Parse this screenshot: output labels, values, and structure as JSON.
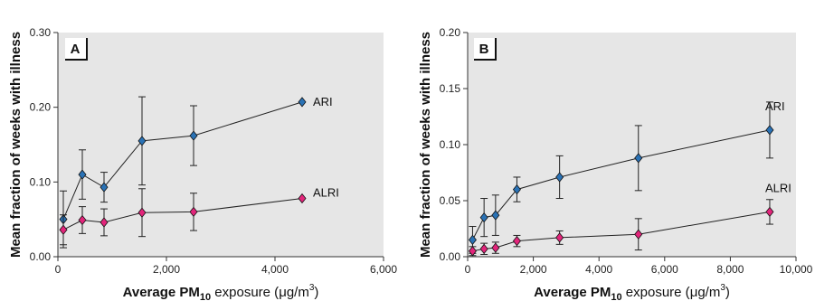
{
  "chart_data": [
    {
      "type": "line",
      "panel": "A",
      "ylabel": "Mean fraction of weeks with illness",
      "xlabel_main": "Average PM",
      "xlabel_sub": "10",
      "xlabel_tail": " exposure (",
      "xlabel_mu": "μ",
      "xlabel_unit": "g/m",
      "xlabel_sup": "3",
      "xlabel_close": ")",
      "xlim": [
        0,
        6000
      ],
      "ylim": [
        0,
        0.3
      ],
      "xticks": [
        0,
        2000,
        4000,
        6000
      ],
      "xtick_labels": [
        "0",
        "2,000",
        "4,000",
        "6,000"
      ],
      "yticks": [
        0,
        0.1,
        0.2,
        0.3
      ],
      "ytick_labels": [
        "0.00",
        "0.10",
        "0.20",
        "0.30"
      ],
      "series": [
        {
          "name": "ARI",
          "color": "#2a72b5",
          "x": [
            100,
            450,
            850,
            1550,
            2500,
            4500
          ],
          "y": [
            0.05,
            0.11,
            0.093,
            0.155,
            0.162,
            0.207
          ],
          "err": [
            0.038,
            0.033,
            0.02,
            0.059,
            0.04,
            0
          ]
        },
        {
          "name": "ALRI",
          "color": "#e3257b",
          "x": [
            100,
            450,
            850,
            1550,
            2500,
            4500
          ],
          "y": [
            0.036,
            0.049,
            0.046,
            0.059,
            0.06,
            0.078
          ],
          "err": [
            0.02,
            0.018,
            0.018,
            0.032,
            0.025,
            0
          ]
        }
      ]
    },
    {
      "type": "line",
      "panel": "B",
      "ylabel": "Mean fraction of weeks with illness",
      "xlabel_main": "Average PM",
      "xlabel_sub": "10",
      "xlabel_tail": " exposure (",
      "xlabel_mu": "μ",
      "xlabel_unit": "g/m",
      "xlabel_sup": "3",
      "xlabel_close": ")",
      "xlim": [
        0,
        10000
      ],
      "ylim": [
        0,
        0.2
      ],
      "xticks": [
        0,
        2000,
        4000,
        6000,
        8000,
        10000
      ],
      "xtick_labels": [
        "0",
        "2,000",
        "4,000",
        "6,000",
        "8,000",
        "10,000"
      ],
      "yticks": [
        0,
        0.05,
        0.1,
        0.15,
        0.2
      ],
      "ytick_labels": [
        "0.00",
        "0.05",
        "0.10",
        "0.15",
        "0.20"
      ],
      "series": [
        {
          "name": "ARI",
          "color": "#2a72b5",
          "x": [
            150,
            500,
            850,
            1500,
            2800,
            5200,
            9200
          ],
          "y": [
            0.015,
            0.035,
            0.037,
            0.06,
            0.071,
            0.088,
            0.113
          ],
          "err": [
            0.012,
            0.017,
            0.018,
            0.011,
            0.019,
            0.029,
            0.025
          ]
        },
        {
          "name": "ALRI",
          "color": "#e3257b",
          "x": [
            150,
            500,
            850,
            1500,
            2800,
            5200,
            9200
          ],
          "y": [
            0.005,
            0.007,
            0.008,
            0.014,
            0.017,
            0.02,
            0.04
          ],
          "err": [
            0.004,
            0.005,
            0.005,
            0.005,
            0.006,
            0.014,
            0.011
          ]
        }
      ]
    }
  ]
}
